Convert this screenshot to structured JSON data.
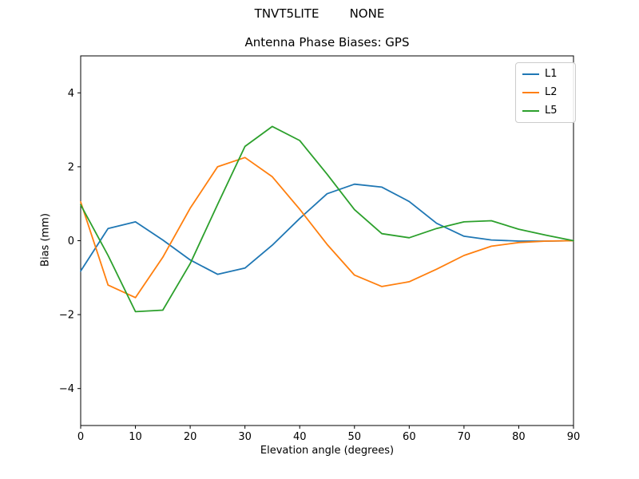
{
  "suptitle": "TNVT5LITE        NONE",
  "colors": {
    "background": "#ffffff",
    "spine": "#000000",
    "tick_label": "#000000",
    "legend_border": "#cccccc",
    "l1": "#1f77b4",
    "l2": "#ff7f0e",
    "l5": "#2ca02c"
  },
  "chart_data": {
    "type": "line",
    "title": "Antenna Phase Biases: GPS",
    "xlabel": "Elevation angle (degrees)",
    "ylabel": "Bias (mm)",
    "xlim": [
      0,
      90
    ],
    "ylim": [
      -5,
      5
    ],
    "xticks": [
      0,
      10,
      20,
      30,
      40,
      50,
      60,
      70,
      80,
      90
    ],
    "yticks": [
      -4,
      -2,
      0,
      2,
      4
    ],
    "grid": false,
    "legend_position": "upper right",
    "line_width": 1.8,
    "x": [
      0,
      5,
      10,
      15,
      20,
      25,
      30,
      35,
      40,
      45,
      50,
      55,
      60,
      65,
      70,
      75,
      80,
      85,
      90
    ],
    "series": [
      {
        "name": "L1",
        "color": "#1f77b4",
        "values": [
          -0.82,
          0.33,
          0.51,
          0.02,
          -0.52,
          -0.91,
          -0.74,
          -0.12,
          0.6,
          1.27,
          1.53,
          1.45,
          1.06,
          0.47,
          0.12,
          0.02,
          -0.01,
          -0.01,
          0.0
        ]
      },
      {
        "name": "L2",
        "color": "#ff7f0e",
        "values": [
          1.05,
          -1.2,
          -1.54,
          -0.45,
          0.88,
          2.0,
          2.25,
          1.73,
          0.85,
          -0.1,
          -0.93,
          -1.24,
          -1.11,
          -0.77,
          -0.4,
          -0.15,
          -0.05,
          -0.01,
          0.0
        ]
      },
      {
        "name": "L5",
        "color": "#2ca02c",
        "values": [
          0.97,
          -0.4,
          -1.92,
          -1.88,
          -0.62,
          0.98,
          2.55,
          3.09,
          2.71,
          1.8,
          0.84,
          0.19,
          0.08,
          0.33,
          0.51,
          0.54,
          0.31,
          0.15,
          0.0
        ]
      }
    ]
  }
}
